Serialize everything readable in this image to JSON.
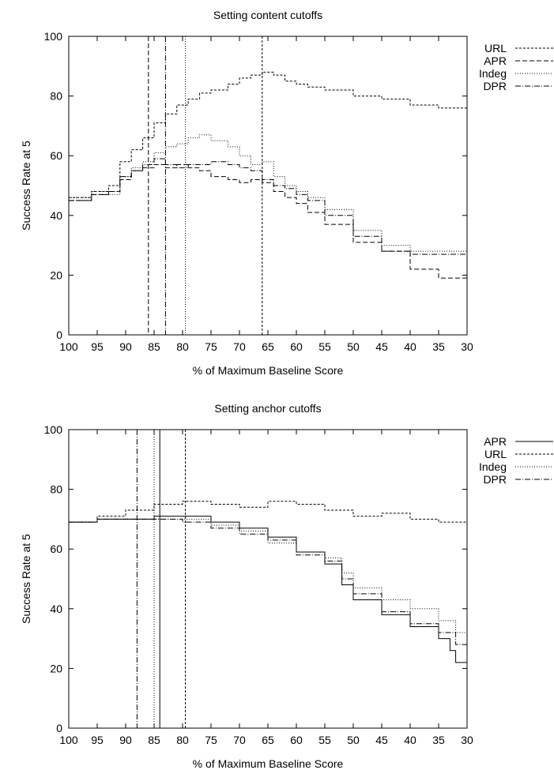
{
  "chart_data": [
    {
      "type": "line",
      "title": "Setting content cutoffs",
      "xlabel": "% of Maximum Baseline Score",
      "ylabel": "Success Rate at 5",
      "xlim": [
        100,
        30
      ],
      "ylim": [
        0,
        100
      ],
      "xticks": [
        100,
        95,
        90,
        85,
        80,
        75,
        70,
        65,
        60,
        55,
        50,
        45,
        40,
        35,
        30
      ],
      "yticks": [
        0,
        20,
        40,
        60,
        80,
        100
      ],
      "legend_position": "outside-top-right",
      "grid": false,
      "cutoffs": [
        {
          "series": "URL",
          "x": 66
        },
        {
          "series": "APR",
          "x": 86
        },
        {
          "series": "Indeg",
          "x": 79.5
        },
        {
          "series": "DPR",
          "x": 83
        }
      ],
      "series": [
        {
          "name": "URL",
          "dash": "3,2",
          "x": [
            100,
            96,
            93,
            91,
            89,
            87,
            85,
            83,
            81,
            79,
            77,
            75,
            72,
            70,
            68,
            66,
            64,
            62,
            60,
            58,
            55,
            50,
            45,
            40,
            35,
            30
          ],
          "y": [
            46,
            48,
            50,
            58,
            62,
            66,
            71,
            74,
            77,
            79,
            81,
            82,
            84,
            86,
            87,
            88,
            87,
            85,
            84,
            83,
            82,
            80,
            79,
            77,
            76,
            76
          ]
        },
        {
          "name": "APR",
          "dash": "6,3",
          "x": [
            100,
            96,
            93,
            91,
            89,
            87,
            85,
            83,
            81,
            79,
            77,
            75,
            72,
            70,
            68,
            66,
            64,
            62,
            60,
            58,
            55,
            50,
            45,
            40,
            35,
            30
          ],
          "y": [
            45,
            47,
            48,
            52,
            55,
            56,
            57,
            56,
            57,
            56,
            55,
            53,
            52,
            51,
            52,
            51,
            48,
            46,
            44,
            41,
            37,
            31,
            28,
            22,
            19,
            19
          ]
        },
        {
          "name": "Indeg",
          "dash": "1,2",
          "x": [
            100,
            96,
            93,
            91,
            89,
            87,
            85,
            83,
            81,
            79,
            77,
            75,
            72,
            70,
            68,
            66,
            64,
            62,
            60,
            58,
            55,
            50,
            45,
            40,
            35,
            30
          ],
          "y": [
            46,
            48,
            47,
            53,
            56,
            58,
            61,
            63,
            64,
            66,
            67,
            65,
            63,
            60,
            57,
            58,
            53,
            50,
            48,
            46,
            42,
            35,
            30,
            28,
            28,
            27
          ]
        },
        {
          "name": "DPR",
          "dash": "7,2,1,2",
          "x": [
            100,
            96,
            93,
            91,
            89,
            87,
            85,
            83,
            81,
            79,
            77,
            75,
            72,
            70,
            68,
            66,
            64,
            62,
            60,
            58,
            55,
            50,
            45,
            40,
            35,
            30
          ],
          "y": [
            45,
            47,
            48,
            53,
            55,
            57,
            59,
            57,
            56,
            57,
            57,
            58,
            57,
            56,
            55,
            52,
            50,
            49,
            47,
            45,
            40,
            33,
            28,
            27,
            27,
            26
          ]
        }
      ]
    },
    {
      "type": "line",
      "title": "Setting anchor cutoffs",
      "xlabel": "% of Maximum Baseline Score",
      "ylabel": "Success Rate at 5",
      "xlim": [
        100,
        30
      ],
      "ylim": [
        0,
        100
      ],
      "xticks": [
        100,
        95,
        90,
        85,
        80,
        75,
        70,
        65,
        60,
        55,
        50,
        45,
        40,
        35,
        30
      ],
      "yticks": [
        0,
        20,
        40,
        60,
        80,
        100
      ],
      "legend_position": "outside-top-right",
      "grid": false,
      "cutoffs": [
        {
          "series": "APR",
          "x": 84
        },
        {
          "series": "URL",
          "x": 79.5
        },
        {
          "series": "Indeg",
          "x": 85
        },
        {
          "series": "DPR",
          "x": 88
        }
      ],
      "series": [
        {
          "name": "APR",
          "dash": "",
          "x": [
            100,
            95,
            90,
            85,
            80,
            75,
            70,
            65,
            60,
            55,
            52,
            50,
            45,
            40,
            35,
            33,
            32,
            30
          ],
          "y": [
            69,
            70,
            70,
            71,
            71,
            69,
            67,
            64,
            59,
            55,
            48,
            43,
            38,
            34,
            30,
            26,
            22,
            21
          ]
        },
        {
          "name": "URL",
          "dash": "3,2",
          "x": [
            100,
            95,
            90,
            85,
            80,
            75,
            70,
            65,
            60,
            55,
            50,
            45,
            40,
            35,
            30
          ],
          "y": [
            69,
            71,
            73,
            75,
            76,
            75,
            74,
            76,
            75,
            73,
            71,
            72,
            70,
            69,
            67
          ]
        },
        {
          "name": "Indeg",
          "dash": "1,2",
          "x": [
            100,
            95,
            90,
            85,
            80,
            75,
            70,
            65,
            60,
            55,
            52,
            50,
            45,
            40,
            35,
            32,
            30
          ],
          "y": [
            69,
            70,
            70,
            70,
            70,
            68,
            66,
            62,
            59,
            57,
            52,
            47,
            43,
            40,
            36,
            32,
            28
          ]
        },
        {
          "name": "DPR",
          "dash": "7,2,1,2",
          "x": [
            100,
            95,
            90,
            85,
            80,
            75,
            70,
            65,
            60,
            55,
            52,
            50,
            45,
            40,
            35,
            32,
            30
          ],
          "y": [
            69,
            70,
            70,
            70,
            69,
            67,
            65,
            63,
            58,
            56,
            50,
            45,
            39,
            35,
            32,
            28,
            27
          ]
        }
      ]
    }
  ]
}
